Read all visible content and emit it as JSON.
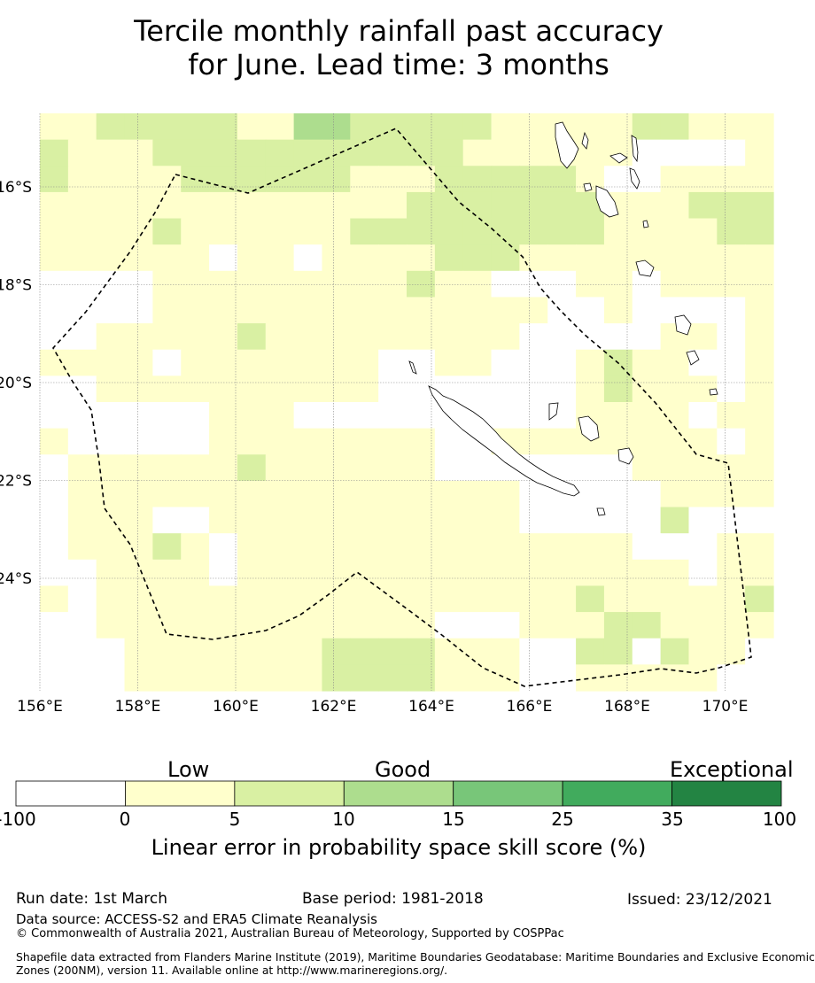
{
  "title": {
    "line1": "Tercile monthly rainfall past accuracy",
    "line2": "for June. Lead time: 3 months"
  },
  "map": {
    "lon_labels": [
      "156°E",
      "158°E",
      "160°E",
      "162°E",
      "164°E",
      "166°E",
      "168°E",
      "170°E"
    ],
    "lat_labels": [
      "16°S",
      "18°S",
      "20°S",
      "22°S",
      "24°S"
    ],
    "lon_values": [
      156,
      158,
      160,
      162,
      164,
      166,
      168,
      170
    ],
    "lat_values": [
      -16,
      -18,
      -20,
      -22,
      -24
    ],
    "boundary_color": "#000000",
    "grid_colors": {
      "c0": "#ffffff",
      "c1": "#ffffcc",
      "c2": "#d9f0a3",
      "c3": "#addd8e"
    },
    "skill_grid": [
      "11222221133222221111122111",
      "21112222222222211111100001",
      "21111222222111222221001111",
      "11111111111112222222111222",
      "11112111111222222222111122",
      "11111101101111222111111111",
      "00001111111112110001101111",
      "00001111111111111100100001",
      "00111112111111111000001101",
      "11110111111100110001211001",
      "00111111111100000001211101",
      "00000011100000000001111011",
      "10000011111111001111111101",
      "01111112111111000000011111",
      "01111111111111111000001111",
      "01110011111111111000002000",
      "01112101111111111111100011",
      "00111101111111111111111011",
      "10111111111111111112111112",
      "00111111111111000111221111",
      "00011111112222111002202110",
      "00011111112222111001111100"
    ]
  },
  "colorbar": {
    "category_labels": [
      "Low",
      "Good",
      "Exceptional"
    ],
    "ticks": [
      "-100",
      "0",
      "5",
      "10",
      "15",
      "25",
      "35",
      "100"
    ],
    "colors": [
      "#ffffff",
      "#ffffcc",
      "#d9f0a3",
      "#addd8e",
      "#78c679",
      "#41ab5d",
      "#238443"
    ],
    "title": "Linear error in probability space skill score (%)"
  },
  "footer": {
    "run_date": "Run date: 1st March",
    "base_period": "Base period: 1981-2018",
    "issued": "Issued: 23/12/2021",
    "data_source": "Data source: ACCESS-S2 and ERA5 Climate Reanalysis",
    "copyright": "© Commonwealth of Australia 2021, Australian Bureau of Meteorology, Supported by COSPPac",
    "shapefile_line1": "Shapefile data extracted from Flanders Marine Institute (2019), Maritime Boundaries Geodatabase: Maritime Boundaries and Exclusive Economic",
    "shapefile_line2": "Zones (200NM), version 11. Available online at http://www.marineregions.org/."
  }
}
